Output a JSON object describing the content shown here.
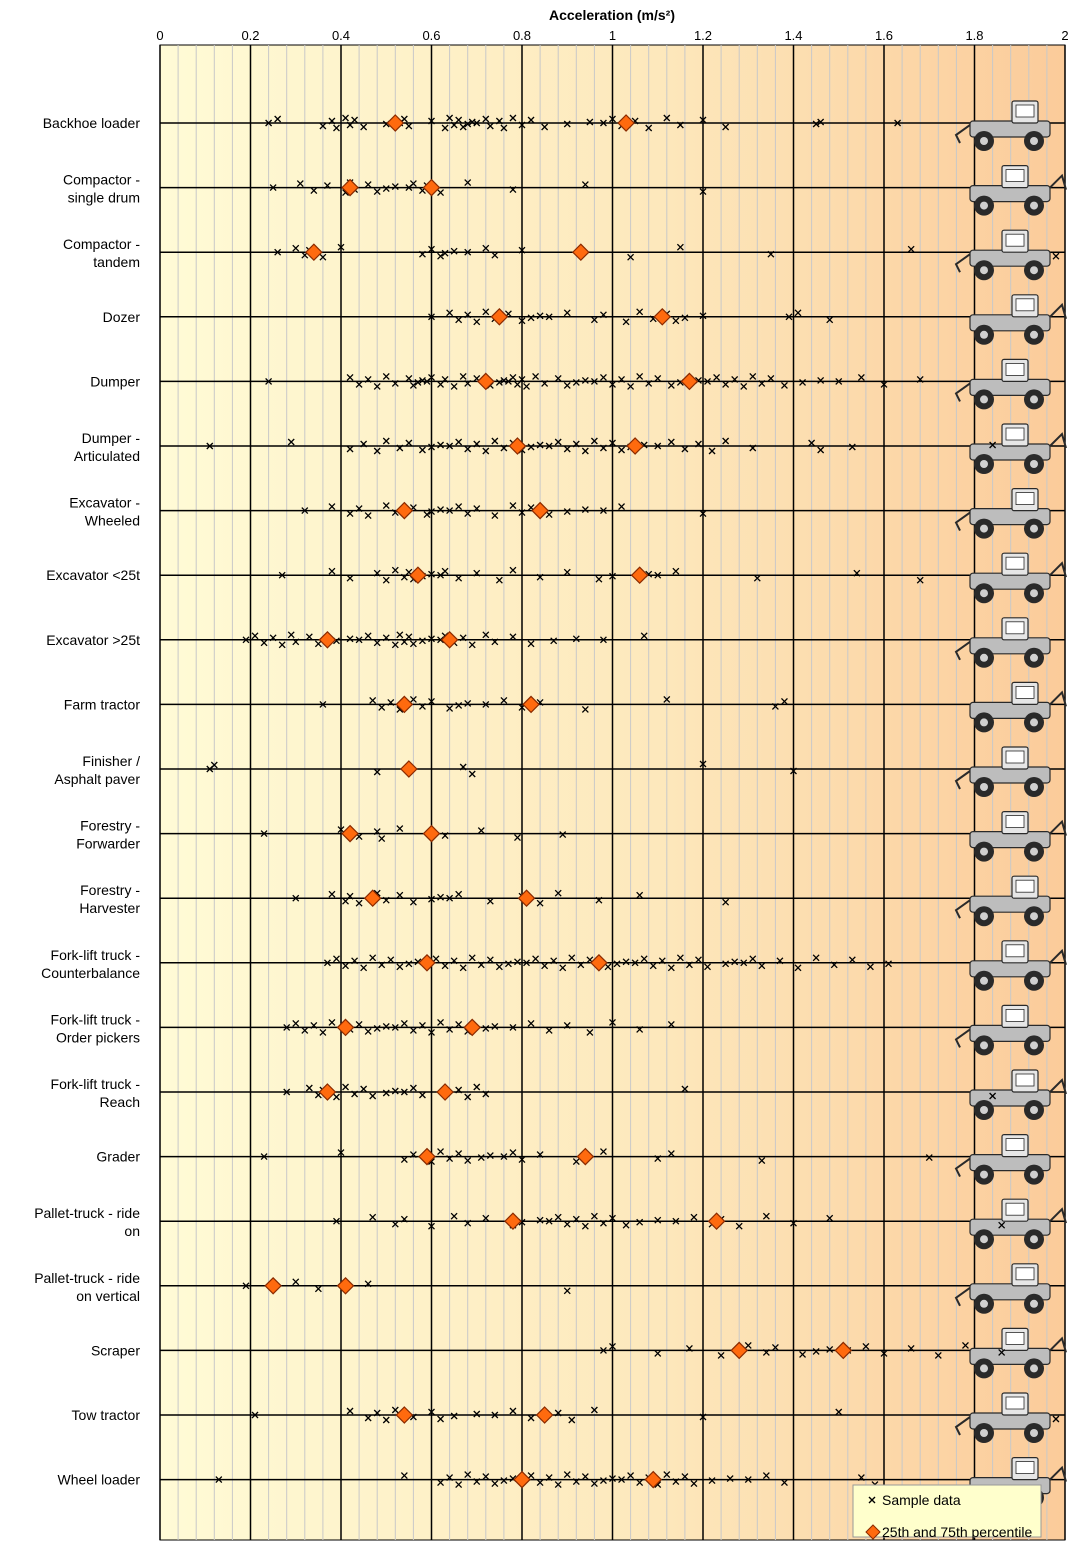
{
  "chart_data": {
    "type": "scatter",
    "title": "Acceleration (m/s²)",
    "xlim": [
      0,
      2
    ],
    "x_ticks": [
      "0",
      "0.2",
      "0.4",
      "0.6",
      "0.8",
      "1",
      "1.2",
      "1.4",
      "1.6",
      "1.8",
      "2"
    ],
    "x_tick_values": [
      0,
      0.2,
      0.4,
      0.6,
      0.8,
      1.0,
      1.2,
      1.4,
      1.6,
      1.8,
      2.0
    ],
    "grid": "vertical, major every 0.2 and minor every 0.04",
    "legend_position": "bottom-right",
    "background": "gradient, pale yellow (left) to light orange (right)",
    "colors": {
      "background_left": "#fffbd6",
      "background_right": "#fbcb9a",
      "grid_major": "#000000",
      "grid_minor": "#c8c8c8",
      "percentile_marker": "#ff6a0e",
      "sample_marker": "#000000"
    },
    "series": [
      {
        "name": "Sample data",
        "marker": "x"
      },
      {
        "name": "25th and 75th percentile",
        "marker": "diamond"
      }
    ],
    "categories": [
      {
        "label": [
          "Backhoe loader"
        ],
        "icon": "backhoe-loader-icon",
        "p25": 0.52,
        "p75": 1.03,
        "samples": [
          0.24,
          0.26,
          0.36,
          0.38,
          0.39,
          0.41,
          0.42,
          0.43,
          0.45,
          0.5,
          0.52,
          0.53,
          0.54,
          0.55,
          0.6,
          0.63,
          0.64,
          0.65,
          0.66,
          0.67,
          0.68,
          0.69,
          0.7,
          0.72,
          0.73,
          0.75,
          0.76,
          0.78,
          0.8,
          0.82,
          0.85,
          0.9,
          0.95,
          0.98,
          1.0,
          1.02,
          1.05,
          1.08,
          1.12,
          1.15,
          1.2,
          1.25,
          1.45,
          1.46,
          1.63
        ]
      },
      {
        "label": [
          "Compactor -",
          "single drum"
        ],
        "icon": "single-drum-compactor-icon",
        "p25": 0.42,
        "p75": 0.6,
        "samples": [
          0.25,
          0.31,
          0.34,
          0.37,
          0.41,
          0.42,
          0.43,
          0.46,
          0.48,
          0.5,
          0.52,
          0.55,
          0.56,
          0.58,
          0.59,
          0.62,
          0.68,
          0.78,
          0.94,
          1.2
        ]
      },
      {
        "label": [
          "Compactor -",
          "tandem"
        ],
        "icon": "tandem-compactor-icon",
        "p25": 0.34,
        "p75": 0.93,
        "samples": [
          0.26,
          0.3,
          0.32,
          0.33,
          0.36,
          0.4,
          0.58,
          0.6,
          0.62,
          0.63,
          0.65,
          0.68,
          0.72,
          0.74,
          0.8,
          1.04,
          1.15,
          1.35,
          1.66,
          1.98
        ]
      },
      {
        "label": [
          "Dozer"
        ],
        "icon": "dozer-icon",
        "p25": 0.75,
        "p75": 1.11,
        "samples": [
          0.6,
          0.64,
          0.66,
          0.68,
          0.7,
          0.72,
          0.74,
          0.77,
          0.8,
          0.82,
          0.84,
          0.86,
          0.9,
          0.96,
          0.98,
          1.03,
          1.06,
          1.09,
          1.12,
          1.14,
          1.16,
          1.2,
          1.39,
          1.41,
          1.48
        ]
      },
      {
        "label": [
          "Dumper"
        ],
        "icon": "dumper-icon",
        "p25": 0.72,
        "p75": 1.17,
        "samples": [
          0.24,
          0.42,
          0.44,
          0.46,
          0.48,
          0.5,
          0.52,
          0.55,
          0.56,
          0.57,
          0.58,
          0.59,
          0.6,
          0.62,
          0.63,
          0.65,
          0.67,
          0.68,
          0.7,
          0.73,
          0.75,
          0.76,
          0.77,
          0.78,
          0.79,
          0.8,
          0.81,
          0.83,
          0.85,
          0.88,
          0.9,
          0.92,
          0.94,
          0.96,
          0.98,
          1.0,
          1.02,
          1.04,
          1.06,
          1.08,
          1.1,
          1.13,
          1.15,
          1.19,
          1.21,
          1.23,
          1.25,
          1.27,
          1.29,
          1.31,
          1.33,
          1.35,
          1.38,
          1.42,
          1.46,
          1.5,
          1.55,
          1.6,
          1.68
        ]
      },
      {
        "label": [
          "Dumper -",
          "Articulated"
        ],
        "icon": "articulated-dumper-icon",
        "p25": 0.79,
        "p75": 1.05,
        "samples": [
          0.11,
          0.29,
          0.42,
          0.45,
          0.48,
          0.5,
          0.53,
          0.55,
          0.58,
          0.6,
          0.62,
          0.64,
          0.66,
          0.68,
          0.7,
          0.72,
          0.74,
          0.76,
          0.78,
          0.8,
          0.82,
          0.84,
          0.86,
          0.88,
          0.9,
          0.92,
          0.94,
          0.96,
          0.98,
          1.0,
          1.02,
          1.04,
          1.07,
          1.1,
          1.13,
          1.16,
          1.19,
          1.22,
          1.25,
          1.31,
          1.44,
          1.46,
          1.53,
          1.84
        ]
      },
      {
        "label": [
          "Excavator -",
          "Wheeled"
        ],
        "icon": "wheeled-excavator-icon",
        "p25": 0.54,
        "p75": 0.84,
        "samples": [
          0.32,
          0.38,
          0.42,
          0.44,
          0.46,
          0.5,
          0.52,
          0.56,
          0.59,
          0.6,
          0.62,
          0.64,
          0.66,
          0.68,
          0.7,
          0.74,
          0.78,
          0.8,
          0.82,
          0.86,
          0.9,
          0.94,
          0.98,
          1.02,
          1.2
        ]
      },
      {
        "label": [
          "Excavator <25t"
        ],
        "icon": "excavator-small-icon",
        "p25": 0.57,
        "p75": 1.06,
        "samples": [
          0.27,
          0.38,
          0.42,
          0.48,
          0.5,
          0.52,
          0.54,
          0.55,
          0.56,
          0.58,
          0.6,
          0.62,
          0.63,
          0.66,
          0.7,
          0.75,
          0.78,
          0.84,
          0.9,
          0.97,
          1.0,
          1.08,
          1.1,
          1.14,
          1.32,
          1.54,
          1.68
        ]
      },
      {
        "label": [
          "Excavator >25t"
        ],
        "icon": "excavator-large-icon",
        "p25": 0.37,
        "p75": 0.64,
        "samples": [
          0.19,
          0.21,
          0.23,
          0.25,
          0.27,
          0.29,
          0.3,
          0.33,
          0.35,
          0.39,
          0.42,
          0.44,
          0.46,
          0.48,
          0.5,
          0.52,
          0.53,
          0.54,
          0.55,
          0.56,
          0.58,
          0.6,
          0.62,
          0.63,
          0.65,
          0.67,
          0.69,
          0.72,
          0.74,
          0.78,
          0.82,
          0.87,
          0.92,
          0.98,
          1.07
        ]
      },
      {
        "label": [
          "Farm tractor"
        ],
        "icon": "farm-tractor-icon",
        "p25": 0.54,
        "p75": 0.82,
        "samples": [
          0.36,
          0.47,
          0.49,
          0.51,
          0.53,
          0.56,
          0.58,
          0.6,
          0.64,
          0.66,
          0.68,
          0.72,
          0.76,
          0.8,
          0.84,
          0.94,
          1.12,
          1.36,
          1.38
        ]
      },
      {
        "label": [
          "Finisher /",
          "Asphalt paver"
        ],
        "icon": "asphalt-paver-icon",
        "p25": 0.55,
        "p75": 0.55,
        "samples": [
          0.11,
          0.12,
          0.48,
          0.67,
          0.69,
          1.2,
          1.4
        ]
      },
      {
        "label": [
          "Forestry -",
          "Forwarder"
        ],
        "icon": "forwarder-icon",
        "p25": 0.42,
        "p75": 0.6,
        "samples": [
          0.23,
          0.4,
          0.44,
          0.48,
          0.49,
          0.53,
          0.63,
          0.71,
          0.79,
          0.89
        ]
      },
      {
        "label": [
          "Forestry -",
          "Harvester"
        ],
        "icon": "harvester-icon",
        "p25": 0.47,
        "p75": 0.81,
        "samples": [
          0.3,
          0.38,
          0.41,
          0.42,
          0.44,
          0.48,
          0.5,
          0.53,
          0.56,
          0.6,
          0.62,
          0.64,
          0.66,
          0.73,
          0.8,
          0.84,
          0.88,
          0.97,
          1.06,
          1.25
        ]
      },
      {
        "label": [
          "Fork-lift truck -",
          "Counterbalance"
        ],
        "icon": "counterbalance-forklift-icon",
        "p25": 0.59,
        "p75": 0.97,
        "samples": [
          0.37,
          0.39,
          0.41,
          0.43,
          0.45,
          0.47,
          0.49,
          0.51,
          0.53,
          0.55,
          0.57,
          0.59,
          0.61,
          0.63,
          0.65,
          0.67,
          0.69,
          0.71,
          0.73,
          0.75,
          0.77,
          0.79,
          0.81,
          0.83,
          0.85,
          0.87,
          0.89,
          0.91,
          0.93,
          0.95,
          0.99,
          1.01,
          1.03,
          1.05,
          1.07,
          1.09,
          1.11,
          1.13,
          1.15,
          1.17,
          1.19,
          1.21,
          1.25,
          1.27,
          1.29,
          1.31,
          1.33,
          1.37,
          1.41,
          1.45,
          1.49,
          1.53,
          1.57,
          1.61
        ]
      },
      {
        "label": [
          "Fork-lift truck -",
          "Order pickers"
        ],
        "icon": "order-picker-icon",
        "p25": 0.41,
        "p75": 0.69,
        "samples": [
          0.28,
          0.3,
          0.32,
          0.34,
          0.36,
          0.38,
          0.42,
          0.44,
          0.46,
          0.48,
          0.5,
          0.52,
          0.54,
          0.56,
          0.58,
          0.6,
          0.62,
          0.64,
          0.66,
          0.68,
          0.72,
          0.74,
          0.78,
          0.82,
          0.86,
          0.9,
          0.95,
          1.0,
          1.06,
          1.13
        ]
      },
      {
        "label": [
          "Fork-lift truck -",
          "Reach"
        ],
        "icon": "reach-forklift-icon",
        "p25": 0.37,
        "p75": 0.63,
        "samples": [
          0.28,
          0.33,
          0.35,
          0.36,
          0.39,
          0.41,
          0.43,
          0.45,
          0.47,
          0.5,
          0.52,
          0.54,
          0.56,
          0.58,
          0.66,
          0.68,
          0.7,
          0.72,
          1.16,
          1.84
        ]
      },
      {
        "label": [
          "Grader"
        ],
        "icon": "grader-icon",
        "p25": 0.59,
        "p75": 0.94,
        "samples": [
          0.23,
          0.4,
          0.54,
          0.56,
          0.6,
          0.62,
          0.64,
          0.66,
          0.68,
          0.71,
          0.73,
          0.76,
          0.78,
          0.8,
          0.84,
          0.92,
          0.98,
          1.1,
          1.13,
          1.33,
          1.7
        ]
      },
      {
        "label": [
          "Pallet-truck - ride",
          "on"
        ],
        "icon": "ride-on-pallet-truck-icon",
        "p25": 0.78,
        "p75": 1.23,
        "samples": [
          0.39,
          0.47,
          0.52,
          0.54,
          0.6,
          0.65,
          0.68,
          0.72,
          0.78,
          0.8,
          0.84,
          0.86,
          0.88,
          0.9,
          0.92,
          0.94,
          0.96,
          0.98,
          1.0,
          1.03,
          1.06,
          1.1,
          1.14,
          1.18,
          1.22,
          1.24,
          1.28,
          1.34,
          1.4,
          1.48,
          1.86
        ]
      },
      {
        "label": [
          "Pallet-truck - ride",
          "on vertical"
        ],
        "icon": "vertical-pallet-truck-icon",
        "p25": 0.25,
        "p75": 0.41,
        "samples": [
          0.19,
          0.3,
          0.35,
          0.46,
          0.9
        ]
      },
      {
        "label": [
          "Scraper"
        ],
        "icon": "scraper-icon",
        "p25": 1.28,
        "p75": 1.51,
        "samples": [
          0.98,
          1.0,
          1.1,
          1.17,
          1.24,
          1.3,
          1.34,
          1.36,
          1.42,
          1.45,
          1.48,
          1.52,
          1.56,
          1.6,
          1.66,
          1.72,
          1.78,
          1.86
        ]
      },
      {
        "label": [
          "Tow tractor"
        ],
        "icon": "tow-tractor-icon",
        "p25": 0.54,
        "p75": 0.85,
        "samples": [
          0.21,
          0.42,
          0.46,
          0.48,
          0.5,
          0.52,
          0.56,
          0.6,
          0.62,
          0.65,
          0.7,
          0.74,
          0.78,
          0.82,
          0.88,
          0.91,
          0.96,
          1.2,
          1.5,
          1.98
        ]
      },
      {
        "label": [
          "Wheel loader"
        ],
        "icon": "wheel-loader-icon",
        "p25": 0.8,
        "p75": 1.09,
        "samples": [
          0.13,
          0.54,
          0.62,
          0.64,
          0.66,
          0.68,
          0.7,
          0.72,
          0.74,
          0.76,
          0.78,
          0.8,
          0.82,
          0.84,
          0.86,
          0.88,
          0.9,
          0.92,
          0.94,
          0.96,
          0.98,
          1.0,
          1.02,
          1.04,
          1.06,
          1.08,
          1.1,
          1.12,
          1.14,
          1.16,
          1.18,
          1.22,
          1.26,
          1.3,
          1.34,
          1.38,
          1.55,
          1.58
        ]
      }
    ],
    "legend": {
      "sample_label": "Sample data",
      "percentile_label": "25th and 75th percentile"
    }
  }
}
